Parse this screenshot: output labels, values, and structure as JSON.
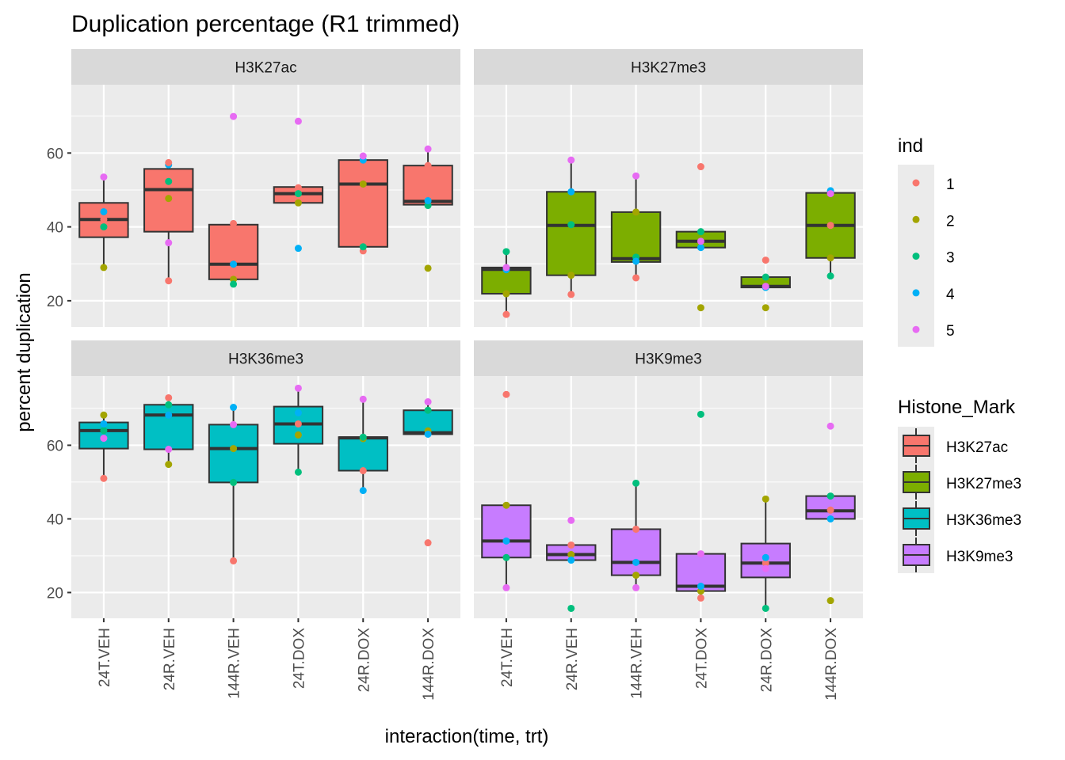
{
  "chart_data": {
    "type": "box",
    "title": "Duplication percentage (R1 trimmed)",
    "xlabel": "interaction(time, trt)",
    "ylabel": "percent duplication",
    "categories": [
      "24T.VEH",
      "24R.VEH",
      "144R.VEH",
      "24T.DOX",
      "24R.DOX",
      "144R.DOX"
    ],
    "yticks": [
      20,
      40,
      60
    ],
    "grid": true,
    "facet_rows": [
      {
        "ylim": [
          12.9,
          78.5
        ]
      },
      {
        "ylim": [
          13.0,
          78.8
        ]
      }
    ],
    "legends": [
      {
        "title": "ind",
        "placement": "right-top",
        "items": [
          {
            "label": "1",
            "color": "#F8766D"
          },
          {
            "label": "2",
            "color": "#A3A500"
          },
          {
            "label": "3",
            "color": "#00BF7D"
          },
          {
            "label": "4",
            "color": "#00B0F6"
          },
          {
            "label": "5",
            "color": "#E76BF3"
          }
        ]
      },
      {
        "title": "Histone_Mark",
        "placement": "right-bottom",
        "items": [
          {
            "label": "H3K27ac",
            "color": "#F8766D"
          },
          {
            "label": "H3K27me3",
            "color": "#7CAE00"
          },
          {
            "label": "H3K36me3",
            "color": "#00BFC4"
          },
          {
            "label": "H3K9me3",
            "color": "#C77CFF"
          }
        ]
      }
    ],
    "panels": [
      {
        "name": "H3K27ac",
        "fill": "#F8766D",
        "boxes": [
          {
            "category": "24T.VEH",
            "low": 29.0,
            "q1": 37.2,
            "median": 42.0,
            "q3": 46.5,
            "high": 53.5,
            "points": [
              {
                "ind": "1",
                "y": 42.0
              },
              {
                "ind": "2",
                "y": 29.0
              },
              {
                "ind": "3",
                "y": 40.0
              },
              {
                "ind": "4",
                "y": 44.1
              },
              {
                "ind": "5",
                "y": 53.5
              }
            ]
          },
          {
            "category": "24R.VEH",
            "low": 25.4,
            "q1": 38.7,
            "median": 50.1,
            "q3": 55.7,
            "high": 57.4,
            "points": [
              {
                "ind": "1",
                "y": 25.4
              },
              {
                "ind": "2",
                "y": 47.7
              },
              {
                "ind": "3",
                "y": 52.3
              },
              {
                "ind": "4",
                "y": 56.8
              },
              {
                "ind": "5",
                "y": 35.7
              },
              {
                "ind": "1",
                "y": 57.4
              }
            ]
          },
          {
            "category": "144R.VEH",
            "low": 24.5,
            "q1": 25.8,
            "median": 29.9,
            "q3": 40.6,
            "high": 40.9,
            "points": [
              {
                "ind": "1",
                "y": 40.9
              },
              {
                "ind": "2",
                "y": 25.8
              },
              {
                "ind": "3",
                "y": 24.5
              },
              {
                "ind": "4",
                "y": 29.9
              },
              {
                "ind": "5",
                "y": 69.9
              }
            ]
          },
          {
            "category": "24T.DOX",
            "low": 46.5,
            "q1": 46.5,
            "median": 49.0,
            "q3": 50.8,
            "high": 50.8,
            "points": [
              {
                "ind": "1",
                "y": 50.6
              },
              {
                "ind": "2",
                "y": 46.5
              },
              {
                "ind": "3",
                "y": 49.0
              },
              {
                "ind": "4",
                "y": 34.2
              },
              {
                "ind": "5",
                "y": 68.6
              }
            ]
          },
          {
            "category": "24R.DOX",
            "low": 33.5,
            "q1": 34.6,
            "median": 51.6,
            "q3": 58.1,
            "high": 59.2,
            "points": [
              {
                "ind": "1",
                "y": 33.5
              },
              {
                "ind": "2",
                "y": 51.6
              },
              {
                "ind": "3",
                "y": 34.6
              },
              {
                "ind": "4",
                "y": 58.1
              },
              {
                "ind": "5",
                "y": 59.2
              }
            ]
          },
          {
            "category": "144R.DOX",
            "low": 45.8,
            "q1": 46.0,
            "median": 46.9,
            "q3": 56.6,
            "high": 61.1,
            "points": [
              {
                "ind": "1",
                "y": 56.6
              },
              {
                "ind": "2",
                "y": 28.8
              },
              {
                "ind": "3",
                "y": 45.8
              },
              {
                "ind": "4",
                "y": 47.1
              },
              {
                "ind": "5",
                "y": 61.1
              }
            ]
          }
        ]
      },
      {
        "name": "H3K27me3",
        "fill": "#7CAE00",
        "boxes": [
          {
            "category": "24T.VEH",
            "low": 16.3,
            "q1": 21.9,
            "median": 28.5,
            "q3": 29.0,
            "high": 33.3,
            "points": [
              {
                "ind": "1",
                "y": 16.3
              },
              {
                "ind": "2",
                "y": 21.9
              },
              {
                "ind": "3",
                "y": 33.3
              },
              {
                "ind": "4",
                "y": 28.4
              },
              {
                "ind": "5",
                "y": 29.0
              }
            ]
          },
          {
            "category": "24R.VEH",
            "low": 21.7,
            "q1": 26.9,
            "median": 40.4,
            "q3": 49.5,
            "high": 58.1,
            "points": [
              {
                "ind": "1",
                "y": 21.7
              },
              {
                "ind": "2",
                "y": 26.9
              },
              {
                "ind": "3",
                "y": 40.6
              },
              {
                "ind": "4",
                "y": 49.5
              },
              {
                "ind": "5",
                "y": 58.1
              }
            ]
          },
          {
            "category": "144R.VEH",
            "low": 26.2,
            "q1": 30.5,
            "median": 31.4,
            "q3": 44.0,
            "high": 53.8,
            "points": [
              {
                "ind": "1",
                "y": 26.2
              },
              {
                "ind": "2",
                "y": 44.0
              },
              {
                "ind": "3",
                "y": 31.8
              },
              {
                "ind": "4",
                "y": 30.7
              },
              {
                "ind": "5",
                "y": 53.8
              }
            ]
          },
          {
            "category": "24T.DOX",
            "low": 34.4,
            "q1": 34.4,
            "median": 36.1,
            "q3": 38.7,
            "high": 38.7,
            "points": [
              {
                "ind": "1",
                "y": 56.3
              },
              {
                "ind": "2",
                "y": 18.1
              },
              {
                "ind": "3",
                "y": 38.7
              },
              {
                "ind": "4",
                "y": 34.4
              },
              {
                "ind": "5",
                "y": 36.1
              }
            ]
          },
          {
            "category": "24R.DOX",
            "low": 23.6,
            "q1": 23.6,
            "median": 23.9,
            "q3": 26.4,
            "high": 26.4,
            "points": [
              {
                "ind": "1",
                "y": 31.0
              },
              {
                "ind": "2",
                "y": 18.1
              },
              {
                "ind": "3",
                "y": 26.4
              },
              {
                "ind": "4",
                "y": 23.6
              },
              {
                "ind": "5",
                "y": 23.9
              }
            ]
          },
          {
            "category": "144R.DOX",
            "low": 26.7,
            "q1": 31.6,
            "median": 40.4,
            "q3": 49.2,
            "high": 49.8,
            "points": [
              {
                "ind": "1",
                "y": 40.4
              },
              {
                "ind": "2",
                "y": 31.6
              },
              {
                "ind": "3",
                "y": 26.7
              },
              {
                "ind": "4",
                "y": 49.8
              },
              {
                "ind": "5",
                "y": 49.0
              }
            ]
          }
        ]
      },
      {
        "name": "H3K36me3",
        "fill": "#00BFC4",
        "boxes": [
          {
            "category": "24T.VEH",
            "low": 51.0,
            "q1": 59.1,
            "median": 64.0,
            "q3": 66.2,
            "high": 68.2,
            "points": [
              {
                "ind": "1",
                "y": 51.0
              },
              {
                "ind": "2",
                "y": 68.2
              },
              {
                "ind": "3",
                "y": 64.0
              },
              {
                "ind": "4",
                "y": 65.8
              },
              {
                "ind": "5",
                "y": 61.9
              }
            ]
          },
          {
            "category": "24R.VEH",
            "low": 54.8,
            "q1": 58.9,
            "median": 68.2,
            "q3": 71.0,
            "high": 72.9,
            "points": [
              {
                "ind": "1",
                "y": 72.9
              },
              {
                "ind": "2",
                "y": 54.8
              },
              {
                "ind": "3",
                "y": 71.0
              },
              {
                "ind": "4",
                "y": 68.2
              },
              {
                "ind": "5",
                "y": 58.9
              }
            ]
          },
          {
            "category": "144R.VEH",
            "low": 28.6,
            "q1": 49.9,
            "median": 59.1,
            "q3": 65.6,
            "high": 70.3,
            "points": [
              {
                "ind": "1",
                "y": 28.6
              },
              {
                "ind": "2",
                "y": 59.1
              },
              {
                "ind": "3",
                "y": 49.9
              },
              {
                "ind": "4",
                "y": 70.3
              },
              {
                "ind": "5",
                "y": 65.6
              }
            ]
          },
          {
            "category": "24T.DOX",
            "low": 52.7,
            "q1": 60.4,
            "median": 65.8,
            "q3": 70.5,
            "high": 75.5,
            "points": [
              {
                "ind": "1",
                "y": 65.8
              },
              {
                "ind": "2",
                "y": 62.8
              },
              {
                "ind": "3",
                "y": 52.7
              },
              {
                "ind": "4",
                "y": 68.8
              },
              {
                "ind": "5",
                "y": 75.5
              }
            ]
          },
          {
            "category": "24R.DOX",
            "low": 47.7,
            "q1": 53.1,
            "median": 62.0,
            "q3": 62.2,
            "high": 72.5,
            "points": [
              {
                "ind": "1",
                "y": 53.1
              },
              {
                "ind": "2",
                "y": 61.8
              },
              {
                "ind": "3",
                "y": 62.2
              },
              {
                "ind": "4",
                "y": 47.7
              },
              {
                "ind": "5",
                "y": 72.5
              }
            ]
          },
          {
            "category": "144R.DOX",
            "low": 63.0,
            "q1": 63.0,
            "median": 63.4,
            "q3": 69.5,
            "high": 71.8,
            "points": [
              {
                "ind": "1",
                "y": 33.5
              },
              {
                "ind": "2",
                "y": 63.9
              },
              {
                "ind": "3",
                "y": 69.5
              },
              {
                "ind": "4",
                "y": 63.0
              },
              {
                "ind": "5",
                "y": 71.8
              }
            ]
          }
        ]
      },
      {
        "name": "H3K9me3",
        "fill": "#C77CFF",
        "boxes": [
          {
            "category": "24T.VEH",
            "low": 21.3,
            "q1": 29.5,
            "median": 34.0,
            "q3": 43.7,
            "high": 43.7,
            "points": [
              {
                "ind": "1",
                "y": 73.8
              },
              {
                "ind": "2",
                "y": 43.7
              },
              {
                "ind": "3",
                "y": 29.5
              },
              {
                "ind": "4",
                "y": 34.0
              },
              {
                "ind": "5",
                "y": 21.3
              }
            ]
          },
          {
            "category": "24R.VEH",
            "low": 28.8,
            "q1": 28.8,
            "median": 30.3,
            "q3": 32.9,
            "high": 32.9,
            "points": [
              {
                "ind": "1",
                "y": 32.9
              },
              {
                "ind": "2",
                "y": 30.3
              },
              {
                "ind": "3",
                "y": 15.7
              },
              {
                "ind": "4",
                "y": 28.8
              },
              {
                "ind": "5",
                "y": 39.6
              }
            ]
          },
          {
            "category": "144R.VEH",
            "low": 21.3,
            "q1": 24.7,
            "median": 28.2,
            "q3": 37.2,
            "high": 49.7,
            "points": [
              {
                "ind": "1",
                "y": 37.2
              },
              {
                "ind": "2",
                "y": 24.7
              },
              {
                "ind": "3",
                "y": 49.7
              },
              {
                "ind": "4",
                "y": 28.2
              },
              {
                "ind": "5",
                "y": 21.3
              }
            ]
          },
          {
            "category": "24T.DOX",
            "low": 18.5,
            "q1": 20.4,
            "median": 21.7,
            "q3": 30.5,
            "high": 30.5,
            "points": [
              {
                "ind": "1",
                "y": 18.5
              },
              {
                "ind": "2",
                "y": 20.4
              },
              {
                "ind": "3",
                "y": 68.4
              },
              {
                "ind": "4",
                "y": 21.7
              },
              {
                "ind": "5",
                "y": 30.5
              }
            ]
          },
          {
            "category": "24R.DOX",
            "low": 15.7,
            "q1": 24.1,
            "median": 28.0,
            "q3": 33.3,
            "high": 45.4,
            "points": [
              {
                "ind": "1",
                "y": 28.0
              },
              {
                "ind": "2",
                "y": 45.4
              },
              {
                "ind": "3",
                "y": 15.7
              },
              {
                "ind": "4",
                "y": 29.5
              },
              {
                "ind": "5",
                "y": 26.5
              }
            ]
          },
          {
            "category": "144R.DOX",
            "low": 40.0,
            "q1": 40.0,
            "median": 42.2,
            "q3": 46.2,
            "high": 46.2,
            "points": [
              {
                "ind": "1",
                "y": 42.4
              },
              {
                "ind": "2",
                "y": 17.8
              },
              {
                "ind": "3",
                "y": 46.2
              },
              {
                "ind": "4",
                "y": 40.0
              },
              {
                "ind": "5",
                "y": 65.2
              }
            ]
          }
        ]
      }
    ]
  }
}
